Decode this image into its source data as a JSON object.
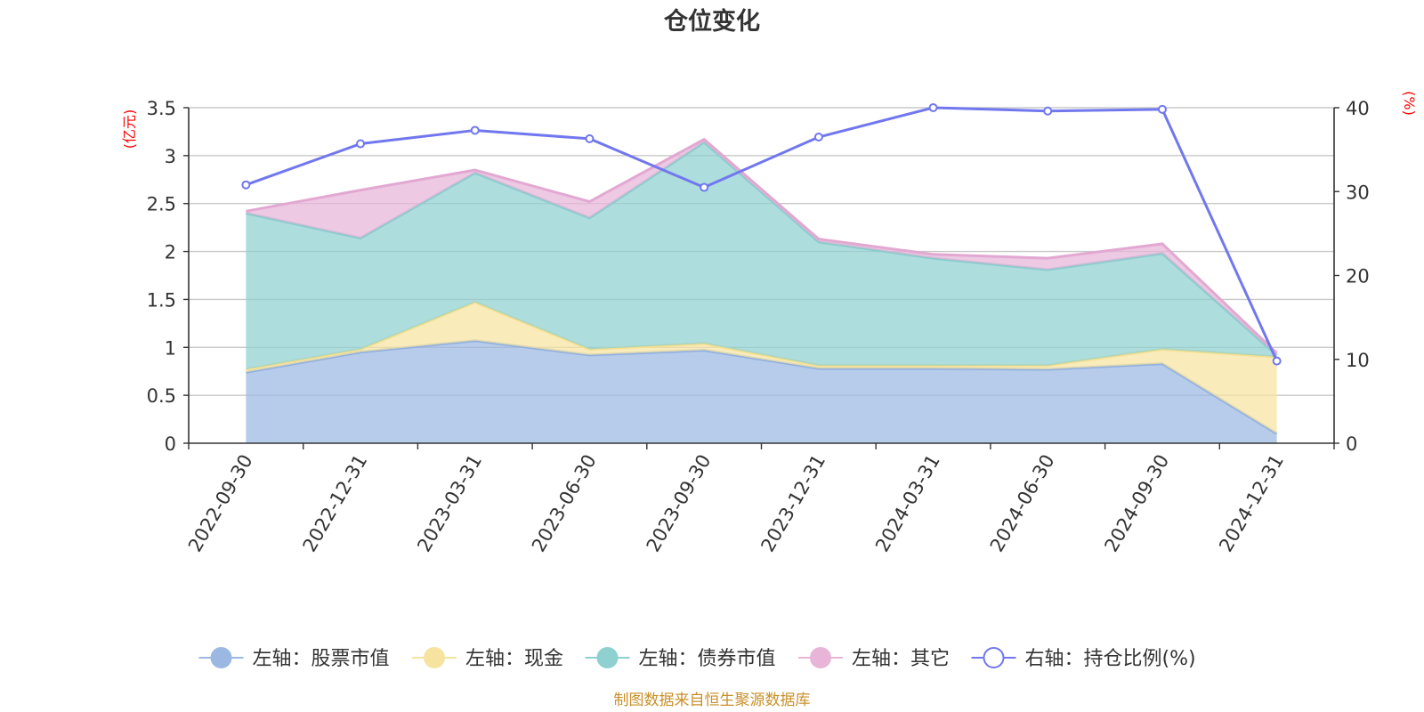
{
  "chart_data": {
    "type": "area",
    "title": "仓位变化",
    "categories": [
      "2022-09-30",
      "2022-12-31",
      "2023-03-31",
      "2023-06-30",
      "2023-09-30",
      "2023-12-31",
      "2024-03-31",
      "2024-06-30",
      "2024-09-30",
      "2024-12-31"
    ],
    "left_axis": {
      "unit": "(亿元)",
      "ylim": [
        0,
        3.5
      ],
      "ticks": [
        "0",
        "0.5",
        "1",
        "1.5",
        "2",
        "2.5",
        "3",
        "3.5"
      ]
    },
    "right_axis": {
      "unit": "(%)",
      "ylim": [
        0,
        40
      ],
      "ticks": [
        "0",
        "10",
        "20",
        "30",
        "40"
      ]
    },
    "stacked_series": [
      {
        "name": "左轴：股票市值",
        "color": "#9bb8e2",
        "values": [
          0.74,
          0.95,
          1.07,
          0.92,
          0.97,
          0.78,
          0.78,
          0.77,
          0.83,
          0.1
        ]
      },
      {
        "name": "左轴：现金",
        "color": "#f7e3a0",
        "values": [
          0.03,
          0.03,
          0.4,
          0.06,
          0.07,
          0.03,
          0.03,
          0.04,
          0.15,
          0.8
        ]
      },
      {
        "name": "左轴：债券市值",
        "color": "#8fd0d0",
        "values": [
          1.63,
          1.16,
          1.35,
          1.37,
          2.1,
          1.29,
          1.12,
          1.0,
          1.0,
          0.02
        ]
      },
      {
        "name": "左轴：其它",
        "color": "#e8b4d8",
        "values": [
          0.02,
          0.5,
          0.03,
          0.17,
          0.03,
          0.03,
          0.04,
          0.12,
          0.1,
          0.02
        ]
      }
    ],
    "line_series": {
      "name": "右轴：持仓比例(%)",
      "color": "#7177ee",
      "values": [
        30.8,
        35.7,
        37.3,
        36.3,
        30.5,
        36.5,
        40.0,
        39.6,
        39.8,
        9.8
      ]
    },
    "source_note": "制图数据来自恒生聚源数据库"
  }
}
